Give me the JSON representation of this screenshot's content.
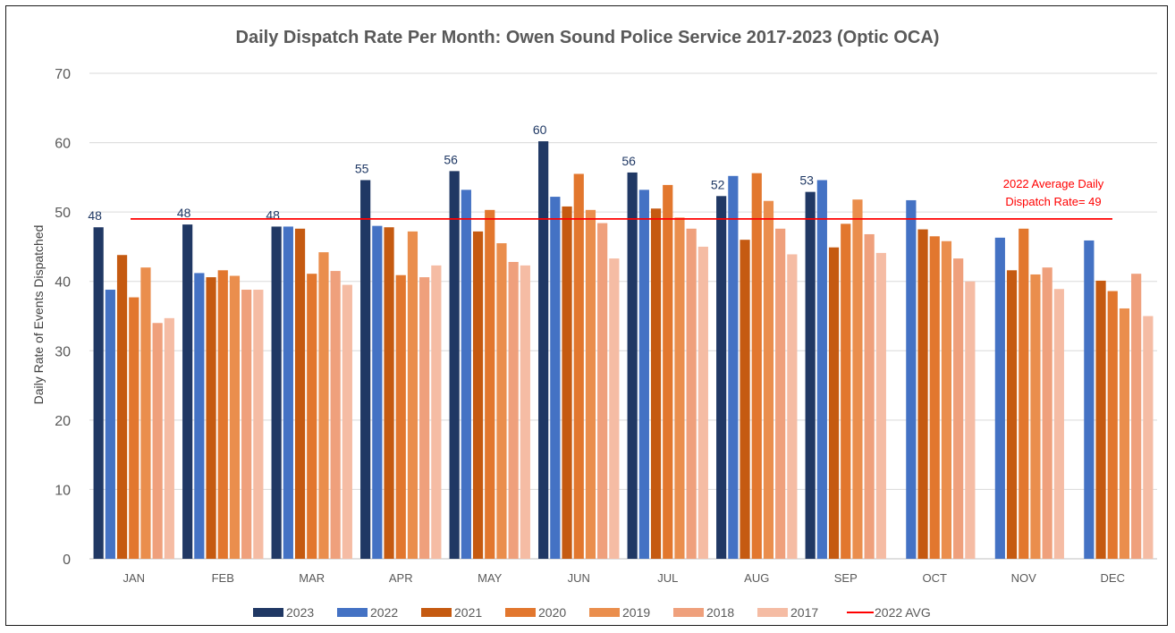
{
  "chart_data": {
    "type": "bar",
    "title": "Daily Dispatch Rate Per Month: Owen Sound Police Service 2017-2023 (Optic OCA)",
    "ylabel": "Daily Rate of Events Dispatched",
    "xlabel": "",
    "ylim": [
      0,
      70
    ],
    "yticks": [
      "0",
      "10",
      "20",
      "30",
      "40",
      "50",
      "60",
      "70"
    ],
    "grid": true,
    "legend_position": "bottom",
    "categories": [
      "JAN",
      "FEB",
      "MAR",
      "APR",
      "MAY",
      "JUN",
      "JUL",
      "AUG",
      "SEP",
      "OCT",
      "NOV",
      "DEC"
    ],
    "series": [
      {
        "name": "2023",
        "color": "#203864",
        "values": [
          47.8,
          48.2,
          47.9,
          54.6,
          55.9,
          60.2,
          55.7,
          52.3,
          52.9,
          null,
          null,
          null
        ],
        "labels": [
          "48",
          "48",
          "48",
          "55",
          "56",
          "60",
          "56",
          "52",
          "53",
          "",
          "",
          ""
        ]
      },
      {
        "name": "2022",
        "color": "#4472c4",
        "values": [
          38.8,
          41.2,
          47.9,
          48.0,
          53.2,
          52.2,
          53.2,
          55.2,
          54.6,
          51.7,
          46.3,
          45.9
        ]
      },
      {
        "name": "2021",
        "color": "#c55a11",
        "values": [
          43.8,
          40.6,
          47.6,
          47.8,
          47.2,
          50.8,
          50.5,
          46.0,
          44.9,
          47.5,
          41.6,
          40.1
        ]
      },
      {
        "name": "2020",
        "color": "#e2772e",
        "values": [
          37.7,
          41.6,
          41.1,
          40.9,
          50.3,
          55.5,
          53.9,
          55.6,
          48.3,
          46.5,
          47.6,
          38.6
        ]
      },
      {
        "name": "2019",
        "color": "#ea8e4d",
        "values": [
          42.0,
          40.8,
          44.2,
          47.2,
          45.5,
          50.3,
          49.2,
          51.6,
          51.8,
          45.8,
          41.0,
          36.1
        ]
      },
      {
        "name": "2018",
        "color": "#efa07c",
        "values": [
          34.0,
          38.8,
          41.5,
          40.6,
          42.8,
          48.4,
          47.6,
          47.6,
          46.8,
          43.3,
          42.0,
          41.1
        ]
      },
      {
        "name": "2017",
        "color": "#f5bca4",
        "values": [
          34.7,
          38.8,
          39.5,
          42.3,
          42.3,
          43.3,
          45.0,
          43.9,
          44.1,
          40.0,
          38.9,
          35.0
        ]
      }
    ],
    "reference_line": {
      "name": "2022 AVG",
      "value": 49,
      "color": "#ff0000"
    },
    "annotation": [
      "2022 Average Daily",
      "Dispatch Rate= 49"
    ]
  }
}
